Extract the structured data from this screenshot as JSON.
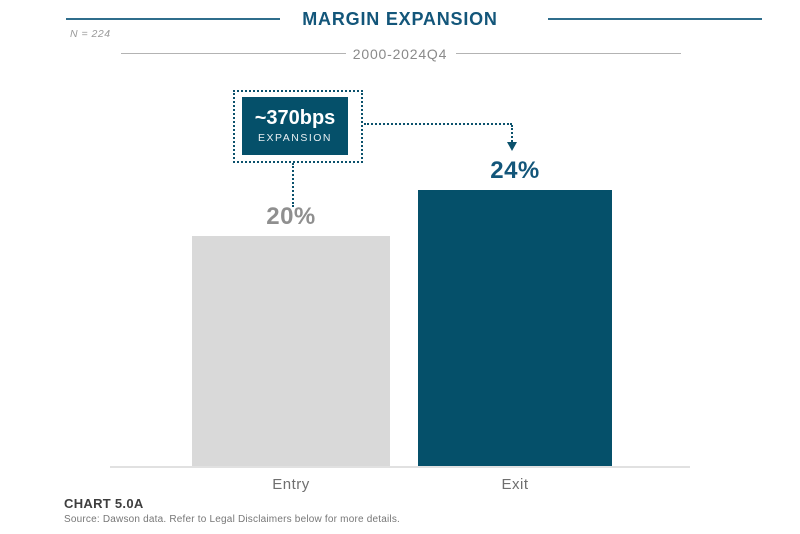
{
  "header": {
    "title": "MARGIN EXPANSION",
    "subtitle": "2000-2024Q4",
    "sample_label": "N = 224"
  },
  "annotation": {
    "value": "~370bps",
    "label": "EXPANSION"
  },
  "chart_data": {
    "type": "bar",
    "title": "MARGIN EXPANSION",
    "subtitle": "2000-2024Q4",
    "sample_size": "N = 224",
    "categories": [
      "Entry",
      "Exit"
    ],
    "values": [
      20,
      24
    ],
    "value_labels": [
      "20%",
      "24%"
    ],
    "annotation": "~370bps EXPANSION",
    "bar_colors": [
      "#d9d9d9",
      "#05506a"
    ],
    "value_label_colors": [
      "#8f8f8f",
      "#13567a"
    ],
    "ylabel": "",
    "xlabel": "",
    "ylim": [
      0,
      26
    ],
    "grid": false,
    "legend": false
  },
  "footer": {
    "chart_label": "CHART 5.0A",
    "source": "Source: Dawson data. Refer to Legal Disclaimers below for more details."
  },
  "colors": {
    "teal_dark": "#05506a",
    "teal_text": "#13567a",
    "teal_rule": "#2f6d8c",
    "dotted_connector": "#0b516c",
    "entry_gray": "#d9d9d9",
    "axis_gray": "#e1e1e1"
  }
}
